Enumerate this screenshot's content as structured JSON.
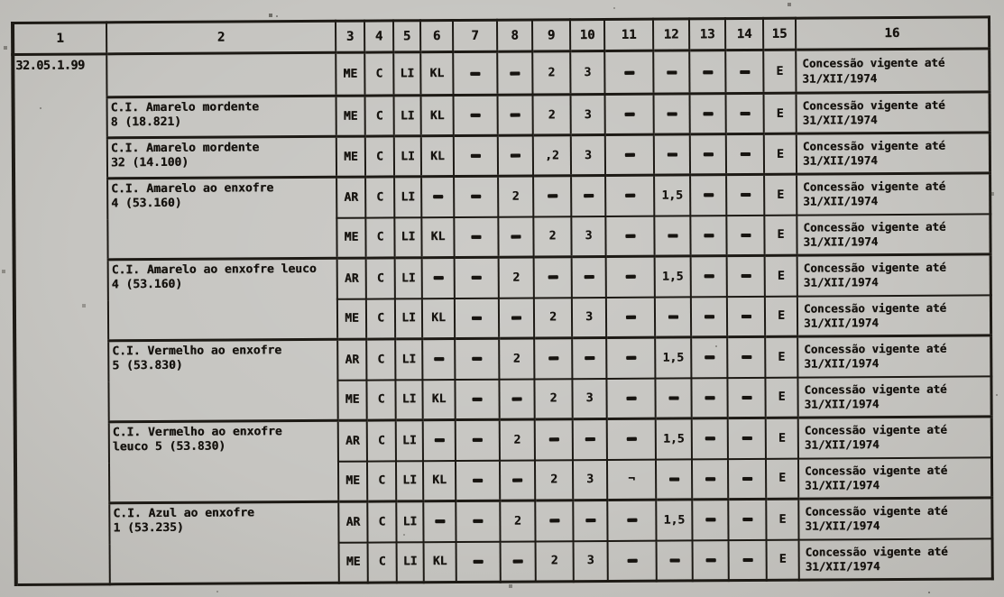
{
  "palette": {
    "paper": "#c6c5c1",
    "ink": "#171410",
    "line": "#1d1a15"
  },
  "table": {
    "headers": [
      "1",
      "2",
      "3",
      "4",
      "5",
      "6",
      "7",
      "8",
      "9",
      "10",
      "11",
      "12",
      "13",
      "14",
      "15",
      "16"
    ],
    "code": "32.05.1.99",
    "note_line1": "Concessão vigente até",
    "note_line2": "31/XII/1974",
    "groups": [
      {
        "name_lines": [],
        "rows": [
          [
            "ME",
            "C",
            "LI",
            "KL",
            "-",
            "-",
            "2",
            "3",
            "-",
            "-",
            "-",
            "-",
            "E"
          ]
        ]
      },
      {
        "name_lines": [
          "C.I. Amarelo mordente",
          "8 (18.821)"
        ],
        "rows": [
          [
            "ME",
            "C",
            "LI",
            "KL",
            "-",
            "-",
            "2",
            "3",
            "-",
            "-",
            "-",
            "-",
            "E"
          ]
        ]
      },
      {
        "name_lines": [
          "C.I. Amarelo mordente",
          "32 (14.100)"
        ],
        "rows": [
          [
            "ME",
            "C",
            "LI",
            "KL",
            "-",
            "-",
            ",2",
            "3",
            "-",
            "-",
            "-",
            "-",
            "E"
          ]
        ]
      },
      {
        "name_lines": [
          "C.I. Amarelo ao enxofre",
          "4 (53.160)"
        ],
        "rows": [
          [
            "AR",
            "C",
            "LI",
            "-",
            "-",
            "2",
            "-",
            "-",
            "-",
            "1,5",
            "-",
            "-",
            "E"
          ],
          [
            "ME",
            "C",
            "LI",
            "KL",
            "-",
            "-",
            "2",
            "3",
            "-",
            "-",
            "-",
            "-",
            "E"
          ]
        ]
      },
      {
        "name_lines": [
          "C.I. Amarelo ao enxofre leuco",
          "4 (53.160)"
        ],
        "rows": [
          [
            "AR",
            "C",
            "LI",
            "-",
            "-",
            "2",
            "-",
            "-",
            "-",
            "1,5",
            "-",
            "-",
            "E"
          ],
          [
            "ME",
            "C",
            "LI",
            "KL",
            "-",
            "-",
            "2",
            "3",
            "-",
            "-",
            "-",
            "-",
            "E"
          ]
        ]
      },
      {
        "name_lines": [
          "C.I. Vermelho ao enxofre",
          "5 (53.830)"
        ],
        "rows": [
          [
            "AR",
            "C",
            "LI",
            "-",
            "-",
            "2",
            "-",
            "-",
            "-",
            "1,5",
            "-",
            "-",
            "E"
          ],
          [
            "ME",
            "C",
            "LI",
            "KL",
            "-",
            "-",
            "2",
            "3",
            "-",
            "-",
            "-",
            "-",
            "E"
          ]
        ]
      },
      {
        "name_lines": [
          "C.I. Vermelho ao enxofre",
          "leuco 5 (53.830)"
        ],
        "rows": [
          [
            "AR",
            "C",
            "LI",
            "-",
            "-",
            "2",
            "-",
            "-",
            "-",
            "1,5",
            "-",
            "-",
            "E"
          ],
          [
            "ME",
            "C",
            "LI",
            "KL",
            "-",
            "-",
            "2",
            "3",
            "¬",
            "-",
            "-",
            "-",
            "E"
          ]
        ]
      },
      {
        "name_lines": [
          "C.I. Azul ao enxofre",
          "1 (53.235)"
        ],
        "rows": [
          [
            "AR",
            "C",
            "LI",
            "-",
            "-",
            "2",
            "-",
            "-",
            "-",
            "1,5",
            "-",
            "-",
            "E"
          ],
          [
            "ME",
            "C",
            "LI",
            "KL",
            "-",
            "-",
            "2",
            "3",
            "-",
            "-",
            "-",
            "-",
            "E"
          ]
        ]
      }
    ]
  }
}
